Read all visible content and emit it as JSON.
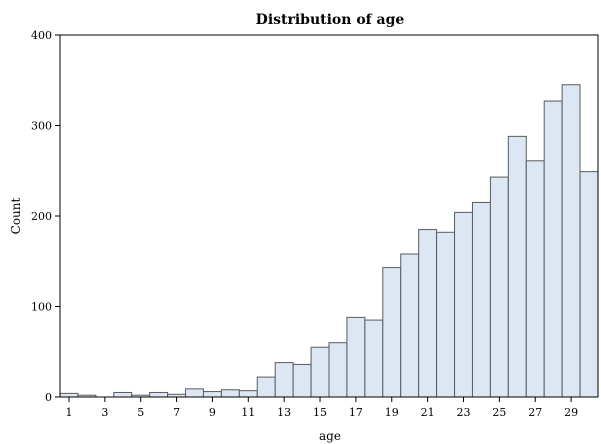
{
  "chart_data": {
    "type": "bar",
    "title": "Distribution of age",
    "xlabel": "age",
    "ylabel": "Count",
    "ylim": [
      0,
      400
    ],
    "xlim": [
      0.5,
      30.5
    ],
    "grid": false,
    "y_ticks": [
      0,
      100,
      200,
      300,
      400
    ],
    "x_ticks": [
      1,
      3,
      5,
      7,
      9,
      11,
      13,
      15,
      17,
      19,
      21,
      23,
      25,
      27,
      29
    ],
    "bar_color": "#dde6f3",
    "bar_edge_color": "#5a5a5a",
    "categories": [
      1,
      2,
      3,
      4,
      5,
      6,
      7,
      8,
      9,
      10,
      11,
      12,
      13,
      14,
      15,
      16,
      17,
      18,
      19,
      20,
      21,
      22,
      23,
      24,
      25,
      26,
      27,
      28,
      29,
      30
    ],
    "values": [
      4,
      2,
      0,
      5,
      2,
      5,
      3,
      9,
      6,
      8,
      7,
      22,
      38,
      36,
      55,
      60,
      88,
      85,
      143,
      158,
      185,
      182,
      204,
      215,
      243,
      288,
      261,
      327,
      345,
      249
    ]
  }
}
